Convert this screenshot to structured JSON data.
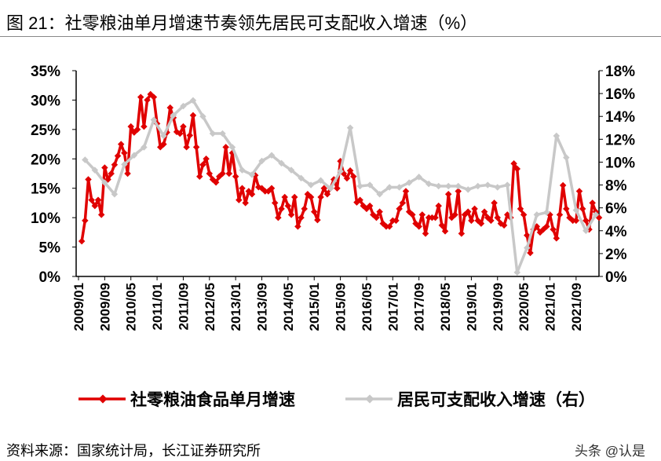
{
  "title": "图 21：社零粮油单月增速节奏领先居民可支配收入增速（%）",
  "source": "资料来源：国家统计局，长江证券研究所",
  "watermark": "头条 @认是",
  "chart_data": {
    "type": "line",
    "title": "",
    "left_axis": {
      "ylim": [
        0,
        35
      ],
      "ticks": [
        "0%",
        "5%",
        "10%",
        "15%",
        "20%",
        "25%",
        "30%",
        "35%"
      ]
    },
    "right_axis": {
      "ylim": [
        0,
        18
      ],
      "ticks": [
        "0%",
        "2%",
        "4%",
        "6%",
        "8%",
        "10%",
        "12%",
        "14%",
        "16%",
        "18%"
      ]
    },
    "x_ticks": [
      "2009/01",
      "2009/09",
      "2010/05",
      "2011/01",
      "2011/09",
      "2012/05",
      "2013/01",
      "2013/09",
      "2014/05",
      "2015/01",
      "2015/09",
      "2016/05",
      "2017/01",
      "2017/09",
      "2018/05",
      "2019/01",
      "2019/09",
      "2020/05",
      "2021/01",
      "2021/09"
    ],
    "grid": false,
    "legend_position": "bottom",
    "series": [
      {
        "name": "社零粮油食品单月增速",
        "axis": "left",
        "color": "#e00000",
        "start": "2009/02",
        "frequency": "monthly",
        "values": [
          6,
          9.5,
          16.5,
          13,
          12,
          13,
          10.5,
          18.5,
          16.5,
          17.5,
          19,
          20.5,
          22.5,
          21,
          17.5,
          25.5,
          24.5,
          25,
          30.5,
          25.5,
          30,
          31,
          30.5,
          26,
          22,
          22.5,
          24.5,
          28.7,
          27,
          24.6,
          24.3,
          25.5,
          22,
          24,
          27.4,
          22,
          17,
          19,
          20,
          17.5,
          16.5,
          16,
          17,
          17.5,
          22,
          17.5,
          21,
          17,
          13,
          15,
          12.5,
          14.5,
          14,
          17.2,
          15.2,
          15,
          14.5,
          14.5,
          15,
          12.5,
          10,
          11.5,
          13.5,
          12,
          10.5,
          13.5,
          8.5,
          10,
          11.5,
          14,
          13.5,
          11,
          9.6,
          13.5,
          15,
          14,
          15,
          16.5,
          15,
          19.6,
          17.5,
          16.7,
          18,
          17,
          12.6,
          13,
          12,
          11.5,
          12,
          10.5,
          10,
          11,
          9,
          8.5,
          8.5,
          9.5,
          9.5,
          11.5,
          12.5,
          14.5,
          11,
          10.5,
          9,
          8.5,
          10.5,
          7.3,
          10,
          10,
          10,
          12,
          8.7,
          7.7,
          14,
          10,
          10.5,
          14.5,
          7.3,
          10.5,
          11,
          9.5,
          11.5,
          9.5,
          9,
          11,
          10,
          9.5,
          12.5,
          10,
          9,
          8.7,
          10.5,
          10,
          19.2,
          18.3,
          11.5,
          10.5,
          7,
          4,
          8,
          8.5,
          7.5,
          8,
          8.5,
          10.5,
          8,
          6.5,
          10.5,
          15.5,
          11.5,
          10,
          9.5,
          9.5,
          14.5,
          11.5,
          9.5,
          8,
          12.5,
          11,
          10
        ]
      },
      {
        "name": "居民可支配收入增速（右）",
        "axis": "right",
        "color": "#c8c8c8",
        "start": "2009/03",
        "frequency": "quarterly",
        "values": [
          10.2,
          9.3,
          8.2,
          7.2,
          9.8,
          10.6,
          11.3,
          13.7,
          12.3,
          14.1,
          14.9,
          15.4,
          14.0,
          12.5,
          12.5,
          11.3,
          9.3,
          8.9,
          10.1,
          10.6,
          9.9,
          9.3,
          8.6,
          8.0,
          8.4,
          7.7,
          9.2,
          13.0,
          7.9,
          8.0,
          7.2,
          7.8,
          7.8,
          8.2,
          8.7,
          8.1,
          7.9,
          7.9,
          7.9,
          7.6,
          7.9,
          8.0,
          7.8,
          8.0,
          0.35,
          2.5,
          5.4,
          5.6,
          12.3,
          10.4,
          5.8,
          4.0,
          5.4
        ]
      }
    ]
  }
}
